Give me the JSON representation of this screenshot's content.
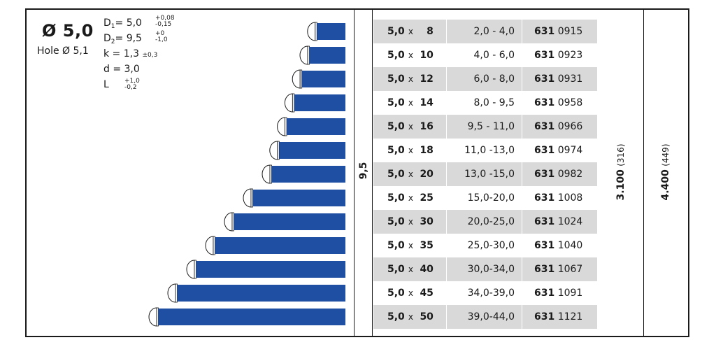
{
  "header": {
    "title": "Ø 5,0",
    "hole": "Hole Ø 5,1"
  },
  "specs": {
    "d1_label": "D",
    "d1_sub": "1",
    "d1_value": "= 5,0",
    "d1_tol_plus": "+0,08",
    "d1_tol_minus": "-0,15",
    "d2_label": "D",
    "d2_sub": "2",
    "d2_value": "= 9,5",
    "d2_tol_plus": "+0",
    "d2_tol_minus": "-1,0",
    "k_line": "k  = 1,3",
    "k_tol": "±0,3",
    "d_line": "d  = 3,0",
    "l_label": "L",
    "l_tol_plus": "+1,0",
    "l_tol_minus": "-0,2"
  },
  "columns": {
    "head_diameter": "9,5",
    "pack_small_bold": "3.100",
    "pack_small_extra": "(316)",
    "pack_large_bold": "4.400",
    "pack_large_extra": "(449)"
  },
  "colors": {
    "rivet_blue": "#1f4fa3",
    "row_shade": "#d9d9d9",
    "border": "#1a1a1a"
  },
  "rows": [
    {
      "d": "5,0",
      "x": "x",
      "l": "8",
      "grip": "2,0 - 4,0",
      "prefix": "631",
      "code": "0915",
      "length": 8
    },
    {
      "d": "5,0",
      "x": "x",
      "l": "10",
      "grip": "4,0 - 6,0",
      "prefix": "631",
      "code": "0923",
      "length": 10
    },
    {
      "d": "5,0",
      "x": "x",
      "l": "12",
      "grip": "6,0 - 8,0",
      "prefix": "631",
      "code": "0931",
      "length": 12
    },
    {
      "d": "5,0",
      "x": "x",
      "l": "14",
      "grip": "8,0 - 9,5",
      "prefix": "631",
      "code": "0958",
      "length": 14
    },
    {
      "d": "5,0",
      "x": "x",
      "l": "16",
      "grip": "9,5 - 11,0",
      "prefix": "631",
      "code": "0966",
      "length": 16
    },
    {
      "d": "5,0",
      "x": "x",
      "l": "18",
      "grip": "11,0 -13,0",
      "prefix": "631",
      "code": "0974",
      "length": 18
    },
    {
      "d": "5,0",
      "x": "x",
      "l": "20",
      "grip": "13,0 -15,0",
      "prefix": "631",
      "code": "0982",
      "length": 20
    },
    {
      "d": "5,0",
      "x": "x",
      "l": "25",
      "grip": "15,0-20,0",
      "prefix": "631",
      "code": "1008",
      "length": 25
    },
    {
      "d": "5,0",
      "x": "x",
      "l": "30",
      "grip": "20,0-25,0",
      "prefix": "631",
      "code": "1024",
      "length": 30
    },
    {
      "d": "5,0",
      "x": "x",
      "l": "35",
      "grip": "25,0-30,0",
      "prefix": "631",
      "code": "1040",
      "length": 35
    },
    {
      "d": "5,0",
      "x": "x",
      "l": "40",
      "grip": "30,0-34,0",
      "prefix": "631",
      "code": "1067",
      "length": 40
    },
    {
      "d": "5,0",
      "x": "x",
      "l": "45",
      "grip": "34,0-39,0",
      "prefix": "631",
      "code": "1091",
      "length": 45
    },
    {
      "d": "5,0",
      "x": "x",
      "l": "50",
      "grip": "39,0-44,0",
      "prefix": "631",
      "code": "1121",
      "length": 50
    }
  ]
}
